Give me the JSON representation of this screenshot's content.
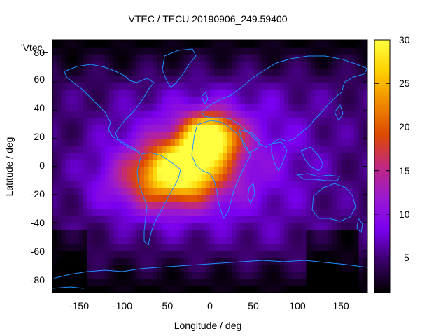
{
  "chart_data": {
    "type": "heatmap",
    "title": "VTEC / TECU 20190906_249.59400",
    "xlabel": "Longitude / deg",
    "ylabel": "Latitude / deg",
    "series_label": "'Vtec_",
    "xlim": [
      -180,
      180
    ],
    "ylim": [
      -90,
      90
    ],
    "x_ticks": [
      "-150",
      "-100",
      "-50",
      "0",
      "50",
      "100",
      "150"
    ],
    "x_tick_values": [
      -150,
      -100,
      -50,
      0,
      50,
      100,
      150
    ],
    "y_ticks": [
      "80",
      "60",
      "40",
      "20",
      "0",
      "-20",
      "-40",
      "-60",
      "-80"
    ],
    "y_tick_values": [
      80,
      60,
      40,
      20,
      0,
      -20,
      -40,
      -60,
      -80
    ],
    "colorbar": {
      "range": [
        1,
        30
      ],
      "ticks": [
        "30",
        "25",
        "20",
        "15",
        "10",
        "5"
      ],
      "tick_values": [
        30,
        25,
        20,
        15,
        10,
        5
      ]
    },
    "palette": [
      "#000000",
      "#3a0068",
      "#7a00f0",
      "#9a1ad0",
      "#c02880",
      "#dd4a00",
      "#f08a00",
      "#ffd000",
      "#ffff40"
    ],
    "coastline_color": "#1e90ff",
    "grid": false,
    "peak": {
      "lon": 0,
      "lat": 22,
      "value": 30
    },
    "secondary_peak": {
      "lon": -30,
      "lat": 0,
      "value": 26
    }
  }
}
